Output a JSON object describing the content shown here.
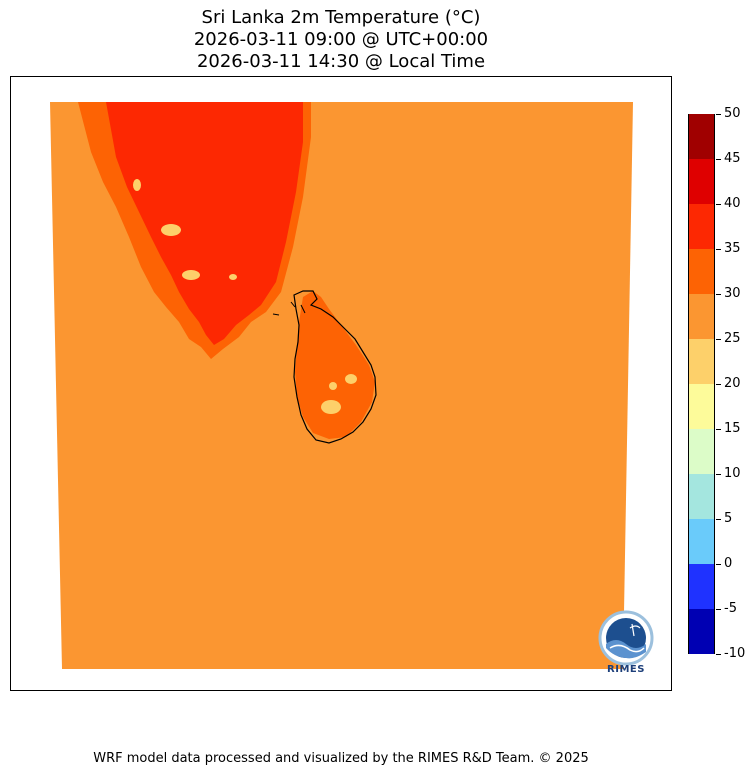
{
  "title": {
    "line1": "Sri Lanka 2m Temperature (°C)",
    "line2": "2026-03-11 09:00 @ UTC+00:00",
    "line3": "2026-03-11 14:30 @ Local Time"
  },
  "colorbar": {
    "levels": [
      {
        "from": -10,
        "to": -5,
        "color": "#0000b3"
      },
      {
        "from": -5,
        "to": 0,
        "color": "#1f32ff"
      },
      {
        "from": 0,
        "to": 5,
        "color": "#6acbfa"
      },
      {
        "from": 5,
        "to": 10,
        "color": "#a4e6df"
      },
      {
        "from": 10,
        "to": 15,
        "color": "#dcfcc8"
      },
      {
        "from": 15,
        "to": 20,
        "color": "#fdfb9a"
      },
      {
        "from": 20,
        "to": 25,
        "color": "#fdd06a"
      },
      {
        "from": 25,
        "to": 30,
        "color": "#fb9631"
      },
      {
        "from": 30,
        "to": 35,
        "color": "#fd6304"
      },
      {
        "from": 35,
        "to": 40,
        "color": "#fd2802"
      },
      {
        "from": 40,
        "to": 45,
        "color": "#df0000"
      },
      {
        "from": 45,
        "to": 50,
        "color": "#a00000"
      }
    ],
    "tick_labels": [
      "50",
      "45",
      "40",
      "35",
      "30",
      "25",
      "20",
      "15",
      "10",
      "5",
      "0",
      "-5",
      "-10"
    ]
  },
  "map": {
    "background_color": "#fb9631",
    "india_hot_color": "#fd2802",
    "india_warm_color": "#fd6304",
    "sri_lanka_color": "#fd6304",
    "cool_patch_color": "#fdd06a",
    "coastline_color": "#000000"
  },
  "logo": {
    "text": "RIMES"
  },
  "footer": {
    "text": "WRF model data processed and visualized by the RIMES R&D Team. © 2025"
  }
}
